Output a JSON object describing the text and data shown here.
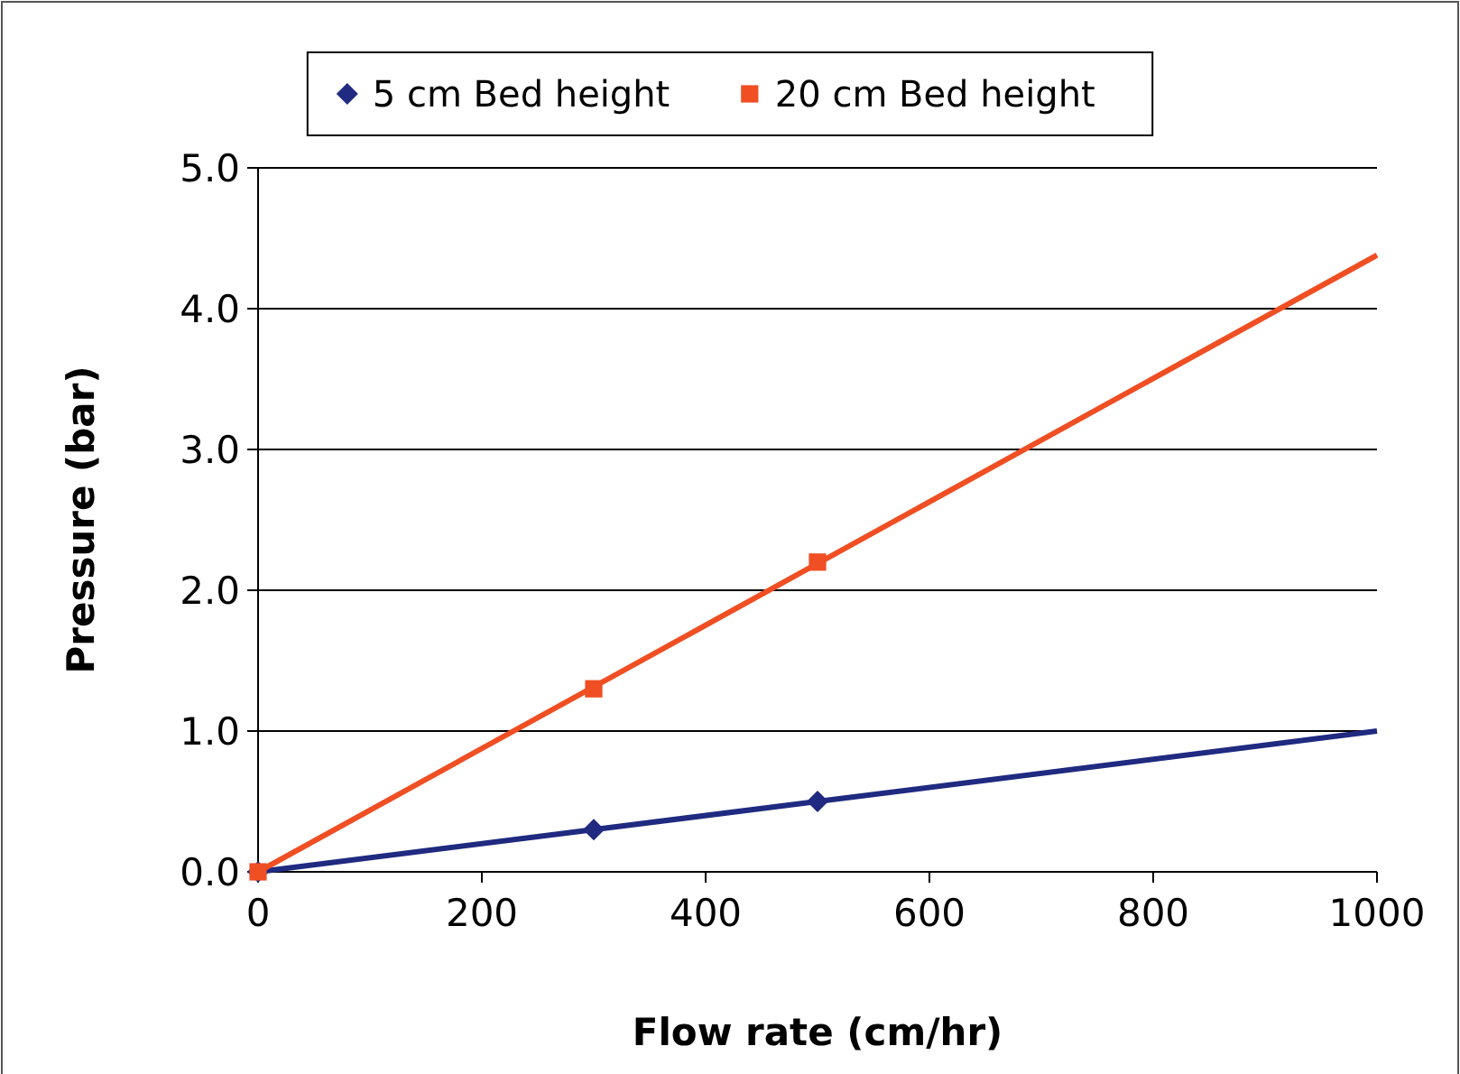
{
  "chart_data": {
    "type": "scatter",
    "xlabel": "Flow rate (cm/hr)",
    "ylabel": "Pressure (bar)",
    "xlim": [
      0,
      1000
    ],
    "xticks": [
      0,
      200,
      400,
      600,
      800,
      1000
    ],
    "ylim": [
      0,
      5
    ],
    "yticks": [
      {
        "value": 0,
        "label": "0.0"
      },
      {
        "value": 1,
        "label": "1.0"
      },
      {
        "value": 2,
        "label": "2.0"
      },
      {
        "value": 3,
        "label": "3.0"
      },
      {
        "value": 4,
        "label": "4.0"
      },
      {
        "value": 5,
        "label": "5.0"
      }
    ],
    "grid": "y",
    "legend": "top",
    "series": [
      {
        "name": "5 cm Bed height",
        "marker": "diamond",
        "color": "#1f2a80",
        "x": [
          0,
          300,
          500
        ],
        "values": [
          0,
          0.3,
          0.5
        ]
      },
      {
        "name": "20 cm Bed height",
        "marker": "square",
        "color": "#f04e23",
        "x": [
          0,
          300,
          500
        ],
        "values": [
          0,
          1.3,
          2.2
        ]
      },
      {
        "type": "line",
        "line_style": "solid",
        "color": "#1f2a80",
        "x": [
          0,
          500,
          1000
        ],
        "values": [
          0,
          0.5,
          1.0
        ]
      },
      {
        "type": "line",
        "line_style": "solid",
        "color": "#f04e23",
        "x": [
          0,
          500,
          1000
        ],
        "values": [
          0,
          2.19,
          4.38
        ]
      }
    ]
  }
}
